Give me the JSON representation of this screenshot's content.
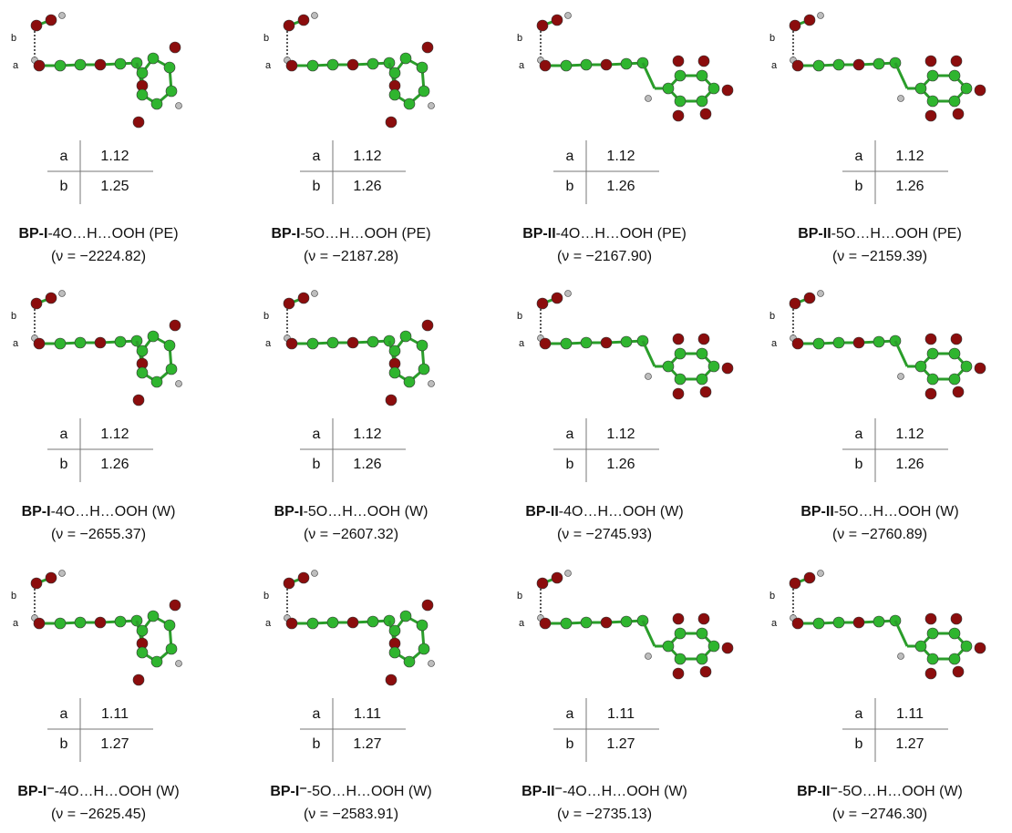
{
  "panels": [
    {
      "labels": [
        "a",
        "b"
      ],
      "values": [
        "1.12",
        "1.25"
      ],
      "name_bold": "BP-I",
      "name_rest": "-4O…H…OOH (PE)",
      "frequency": "(ν = −2224.82)"
    },
    {
      "labels": [
        "a",
        "b"
      ],
      "values": [
        "1.12",
        "1.26"
      ],
      "name_bold": "BP-I",
      "name_rest": "-5O…H…OOH (PE)",
      "frequency": "(ν = −2187.28)"
    },
    {
      "labels": [
        "a",
        "b"
      ],
      "values": [
        "1.12",
        "1.26"
      ],
      "name_bold": "BP-II",
      "name_rest": "-4O…H…OOH (PE)",
      "frequency": "(ν = −2167.90)"
    },
    {
      "labels": [
        "a",
        "b"
      ],
      "values": [
        "1.12",
        "1.26"
      ],
      "name_bold": "BP-II",
      "name_rest": "-5O…H…OOH (PE)",
      "frequency": "(ν = −2159.39)"
    },
    {
      "labels": [
        "a",
        "b"
      ],
      "values": [
        "1.12",
        "1.26"
      ],
      "name_bold": "BP-I",
      "name_rest": "-4O…H…OOH (W)",
      "frequency": "(ν = −2655.37)"
    },
    {
      "labels": [
        "a",
        "b"
      ],
      "values": [
        "1.12",
        "1.26"
      ],
      "name_bold": "BP-I",
      "name_rest": "-5O…H…OOH (W)",
      "frequency": "(ν = −2607.32)"
    },
    {
      "labels": [
        "a",
        "b"
      ],
      "values": [
        "1.12",
        "1.26"
      ],
      "name_bold": "BP-II",
      "name_rest": "-4O…H…OOH (W)",
      "frequency": "(ν = −2745.93)"
    },
    {
      "labels": [
        "a",
        "b"
      ],
      "values": [
        "1.12",
        "1.26"
      ],
      "name_bold": "BP-II",
      "name_rest": "-5O…H…OOH (W)",
      "frequency": "(ν = −2760.89)"
    },
    {
      "labels": [
        "a",
        "b"
      ],
      "values": [
        "1.11",
        "1.27"
      ],
      "name_bold": "BP-I⁻",
      "name_rest": "-4O…H…OOH (W)",
      "frequency": "(ν = −2625.45)"
    },
    {
      "labels": [
        "a",
        "b"
      ],
      "values": [
        "1.11",
        "1.27"
      ],
      "name_bold": "BP-I⁻",
      "name_rest": "-5O…H…OOH (W)",
      "frequency": "(ν = −2583.91)"
    },
    {
      "labels": [
        "a",
        "b"
      ],
      "values": [
        "1.11",
        "1.27"
      ],
      "name_bold": "BP-II⁻",
      "name_rest": "-4O…H…OOH (W)",
      "frequency": "(ν = −2735.13)"
    },
    {
      "labels": [
        "a",
        "b"
      ],
      "values": [
        "1.11",
        "1.27"
      ],
      "name_bold": "BP-II⁻",
      "name_rest": "-5O…H…OOH (W)",
      "frequency": "(ν = −2746.30)"
    }
  ]
}
